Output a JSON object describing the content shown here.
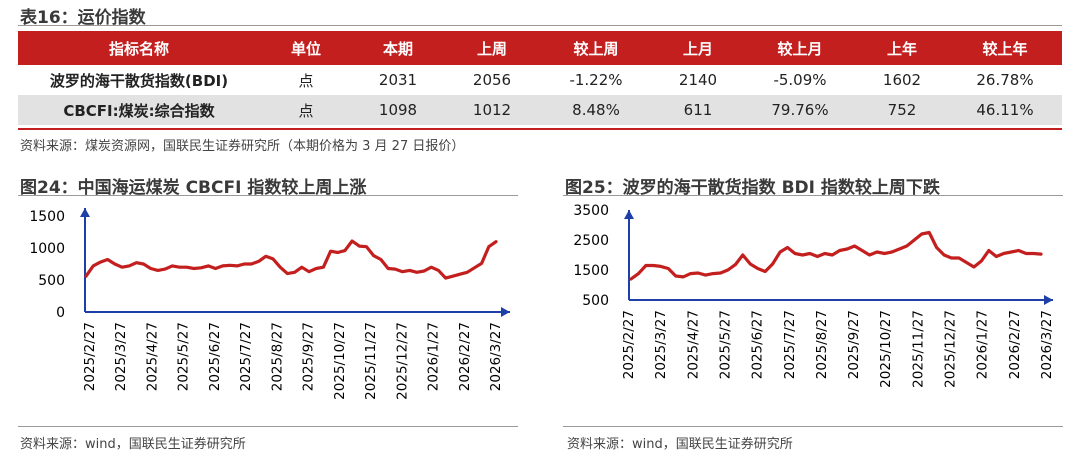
{
  "table": {
    "title": "表16：运价指数",
    "headers": [
      "指标名称",
      "单位",
      "本期",
      "上周",
      "较上周",
      "上月",
      "较上月",
      "上年",
      "较上年"
    ],
    "rows": [
      [
        "波罗的海干散货指数(BDI)",
        "点",
        "2031",
        "2056",
        "-1.22%",
        "2140",
        "-5.09%",
        "1602",
        "26.78%"
      ],
      [
        "CBCFI:煤炭:综合指数",
        "点",
        "1098",
        "1012",
        "8.48%",
        "611",
        "79.76%",
        "752",
        "46.11%"
      ]
    ],
    "source": "资料来源：煤炭资源网，国联民生证券研究所（本期价格为 3 月 27 日报价）"
  },
  "figures": [
    {
      "title": "图24：中国海运煤炭 CBCFI 指数较上周上涨",
      "source": "资料来源：wind，国联民生证券研究所",
      "chart_data": {
        "type": "line",
        "title": "中国海运煤炭 CBCFI 指数",
        "xlabel": "",
        "ylabel": "",
        "ylim": [
          0,
          1500
        ],
        "yticks": [
          0,
          500,
          1000,
          1500
        ],
        "color": "#c41f1f",
        "x_tick_labels": [
          "2025/2/27",
          "2025/3/27",
          "2025/4/27",
          "2025/5/27",
          "2025/6/27",
          "2025/7/27",
          "2025/8/27",
          "2025/9/27",
          "2025/10/27",
          "2025/11/27",
          "2025/12/27",
          "2026/1/27",
          "2026/2/27",
          "2026/3/27"
        ],
        "series": [
          {
            "name": "CBCFI",
            "values": [
              560,
              720,
              780,
              820,
              750,
              700,
              720,
              770,
              750,
              680,
              650,
              670,
              720,
              700,
              700,
              680,
              690,
              720,
              680,
              720,
              730,
              720,
              750,
              750,
              790,
              870,
              830,
              700,
              600,
              620,
              700,
              630,
              680,
              700,
              950,
              930,
              960,
              1110,
              1030,
              1020,
              880,
              820,
              680,
              670,
              630,
              650,
              620,
              640,
              700,
              650,
              530,
              560,
              590,
              620,
              690,
              760,
              1020,
              1098
            ]
          }
        ]
      }
    },
    {
      "title": "图25：波罗的海干散货指数 BDI 指数较上周下跌",
      "source": "资料来源：wind，国联民生证券研究所",
      "chart_data": {
        "type": "line",
        "title": "波罗的海干散货指数 BDI",
        "xlabel": "",
        "ylabel": "",
        "ylim": [
          500,
          3500
        ],
        "yticks": [
          500,
          1500,
          2500,
          3500
        ],
        "color": "#c41f1f",
        "x_tick_labels": [
          "2025/2/27",
          "2025/3/27",
          "2025/4/27",
          "2025/5/27",
          "2025/6/27",
          "2025/7/27",
          "2025/8/27",
          "2025/9/27",
          "2025/10/27",
          "2025/11/27",
          "2025/12/27",
          "2026/1/27",
          "2026/2/27",
          "2026/3/27"
        ],
        "series": [
          {
            "name": "BDI",
            "values": [
              1200,
              1380,
              1650,
              1650,
              1620,
              1550,
              1300,
              1270,
              1380,
              1400,
              1330,
              1380,
              1400,
              1500,
              1680,
              2000,
              1700,
              1550,
              1450,
              1700,
              2100,
              2250,
              2050,
              2000,
              2050,
              1950,
              2050,
              2000,
              2150,
              2200,
              2300,
              2150,
              2000,
              2100,
              2050,
              2100,
              2200,
              2300,
              2500,
              2700,
              2750,
              2250,
              2000,
              1900,
              1900,
              1750,
              1600,
              1800,
              2150,
              1950,
              2050,
              2100,
              2150,
              2050,
              2050,
              2031
            ]
          }
        ]
      }
    }
  ]
}
